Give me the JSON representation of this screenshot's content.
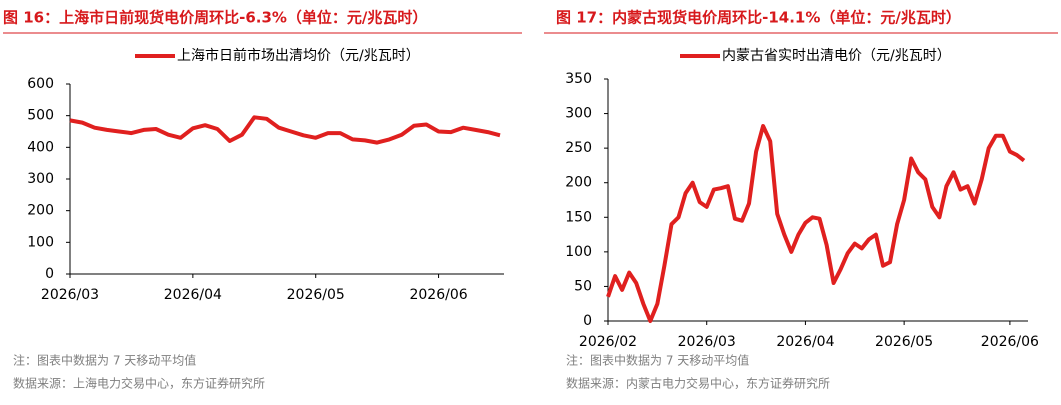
{
  "chart_data": [
    {
      "type": "line",
      "title": "图 16：上海市日前现货电价周环比-6.3%（单位：元/兆瓦时）",
      "categories": [
        "2026/03",
        null,
        null,
        null,
        null,
        null,
        null,
        null,
        null,
        null,
        "2026/04",
        null,
        null,
        null,
        null,
        null,
        null,
        null,
        null,
        null,
        "2026/05",
        null,
        null,
        null,
        null,
        null,
        null,
        null,
        null,
        null,
        "2026/06",
        null,
        null,
        null,
        null,
        null
      ],
      "series": [
        {
          "name": "上海市日前市场出清均价（元/兆瓦时）",
          "color": "#e0201f",
          "values": [
            485,
            478,
            462,
            455,
            450,
            445,
            455,
            458,
            440,
            430,
            460,
            470,
            458,
            420,
            440,
            495,
            490,
            462,
            450,
            438,
            430,
            445,
            445,
            425,
            422,
            415,
            425,
            440,
            468,
            472,
            450,
            448,
            462,
            455,
            448,
            438
          ]
        }
      ],
      "ylim": [
        0,
        600
      ],
      "yticks": [
        0,
        100,
        200,
        300,
        400,
        500,
        600
      ],
      "note": "注：图表中数据为 7 天移动平均值",
      "source": "数据来源：上海电力交易中心，东方证券研究所"
    },
    {
      "type": "line",
      "title": "图 17：内蒙古现货电价周环比-14.1%（单位：元/兆瓦时）",
      "categories": [
        "2026/02",
        null,
        null,
        null,
        null,
        null,
        null,
        null,
        null,
        null,
        null,
        null,
        null,
        null,
        "2026/03",
        null,
        null,
        null,
        null,
        null,
        null,
        null,
        null,
        null,
        null,
        null,
        null,
        null,
        "2026/04",
        null,
        null,
        null,
        null,
        null,
        null,
        null,
        null,
        null,
        null,
        null,
        null,
        null,
        "2026/05",
        null,
        null,
        null,
        null,
        null,
        null,
        null,
        null,
        null,
        null,
        null,
        null,
        null,
        null,
        "2026/06",
        null,
        null
      ],
      "series": [
        {
          "name": "内蒙古省实时出清电价（元/兆瓦时）",
          "color": "#e0201f",
          "values": [
            35,
            65,
            45,
            70,
            55,
            25,
            0,
            25,
            80,
            140,
            150,
            185,
            200,
            172,
            165,
            190,
            192,
            195,
            148,
            145,
            170,
            245,
            282,
            260,
            155,
            125,
            100,
            125,
            142,
            150,
            148,
            110,
            55,
            75,
            98,
            112,
            105,
            118,
            125,
            80,
            85,
            140,
            175,
            235,
            215,
            205,
            165,
            150,
            195,
            215,
            190,
            195,
            170,
            205,
            250,
            268,
            268,
            245,
            240,
            232
          ]
        }
      ],
      "ylim": [
        0,
        350
      ],
      "yticks": [
        0,
        50,
        100,
        150,
        200,
        250,
        300,
        350
      ],
      "note": "注：图表中数据为 7 天移动平均值",
      "source": "数据来源：内蒙古电力交易中心，东方证券研究所"
    }
  ]
}
